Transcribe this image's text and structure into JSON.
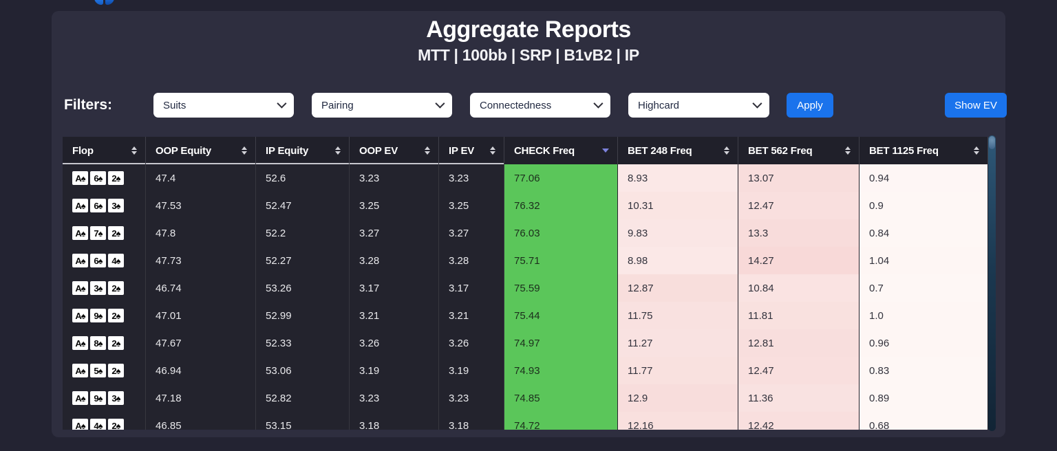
{
  "page": {
    "title": "Aggregate Reports",
    "subtitle": "MTT | 100bb | SRP | B1vB2 | IP"
  },
  "filters": {
    "label": "Filters:",
    "dropdowns": [
      {
        "label": "Suits"
      },
      {
        "label": "Pairing"
      },
      {
        "label": "Connectedness"
      },
      {
        "label": "Highcard"
      }
    ],
    "apply_label": "Apply",
    "show_ev_label": "Show EV"
  },
  "table": {
    "columns": [
      {
        "label": "Flop",
        "kind": "dark",
        "sort": "unsorted"
      },
      {
        "label": "OOP Equity",
        "kind": "dark",
        "sort": "unsorted"
      },
      {
        "label": "IP Equity",
        "kind": "dark",
        "sort": "unsorted"
      },
      {
        "label": "OOP EV",
        "kind": "dark",
        "sort": "unsorted"
      },
      {
        "label": "IP EV",
        "kind": "dark",
        "sort": "unsorted"
      },
      {
        "label": "CHECK Freq",
        "kind": "green",
        "sort": "desc"
      },
      {
        "label": "BET 248 Freq",
        "kind": "pink",
        "sort": "unsorted"
      },
      {
        "label": "BET 562 Freq",
        "kind": "pink",
        "sort": "unsorted"
      },
      {
        "label": "BET 1125 Freq",
        "kind": "pink",
        "sort": "unsorted"
      }
    ],
    "rows": [
      {
        "cards": [
          "A♠",
          "6♠",
          "2♠"
        ],
        "values": [
          "47.4",
          "52.6",
          "3.23",
          "3.23",
          "77.06",
          "8.93",
          "13.07",
          "0.94"
        ]
      },
      {
        "cards": [
          "A♠",
          "6♠",
          "3♠"
        ],
        "values": [
          "47.53",
          "52.47",
          "3.25",
          "3.25",
          "76.32",
          "10.31",
          "12.47",
          "0.9"
        ]
      },
      {
        "cards": [
          "A♠",
          "7♠",
          "2♠"
        ],
        "values": [
          "47.8",
          "52.2",
          "3.27",
          "3.27",
          "76.03",
          "9.83",
          "13.3",
          "0.84"
        ]
      },
      {
        "cards": [
          "A♠",
          "6♠",
          "4♠"
        ],
        "values": [
          "47.73",
          "52.27",
          "3.28",
          "3.28",
          "75.71",
          "8.98",
          "14.27",
          "1.04"
        ]
      },
      {
        "cards": [
          "A♠",
          "3♠",
          "2♠"
        ],
        "values": [
          "46.74",
          "53.26",
          "3.17",
          "3.17",
          "75.59",
          "12.87",
          "10.84",
          "0.7"
        ]
      },
      {
        "cards": [
          "A♠",
          "9♠",
          "2♠"
        ],
        "values": [
          "47.01",
          "52.99",
          "3.21",
          "3.21",
          "75.44",
          "11.75",
          "11.81",
          "1.0"
        ]
      },
      {
        "cards": [
          "A♠",
          "8♠",
          "2♠"
        ],
        "values": [
          "47.67",
          "52.33",
          "3.26",
          "3.26",
          "74.97",
          "11.27",
          "12.81",
          "0.96"
        ]
      },
      {
        "cards": [
          "A♠",
          "5♠",
          "2♠"
        ],
        "values": [
          "46.94",
          "53.06",
          "3.19",
          "3.19",
          "74.93",
          "11.77",
          "12.47",
          "0.83"
        ]
      },
      {
        "cards": [
          "A♠",
          "9♠",
          "3♠"
        ],
        "values": [
          "47.18",
          "52.82",
          "3.23",
          "3.23",
          "74.85",
          "12.9",
          "11.36",
          "0.89"
        ]
      },
      {
        "cards": [
          "A♠",
          "4♠",
          "2♠"
        ],
        "values": [
          "46.85",
          "53.15",
          "3.18",
          "3.18",
          "74.72",
          "12.16",
          "12.42",
          "0.68"
        ]
      }
    ]
  },
  "colors": {
    "accent_blue": "#1a73ec",
    "check_green": "#5bc65a",
    "bet_pink_light": "#fef7f5",
    "bet_pink_strong": "#f7d7d6",
    "panel_bg": "#2e2e3f",
    "outer_bg": "#232332",
    "header_bg": "#20202a",
    "row_bg": "#23232d",
    "sorted_arrow": "#7d82dd"
  }
}
